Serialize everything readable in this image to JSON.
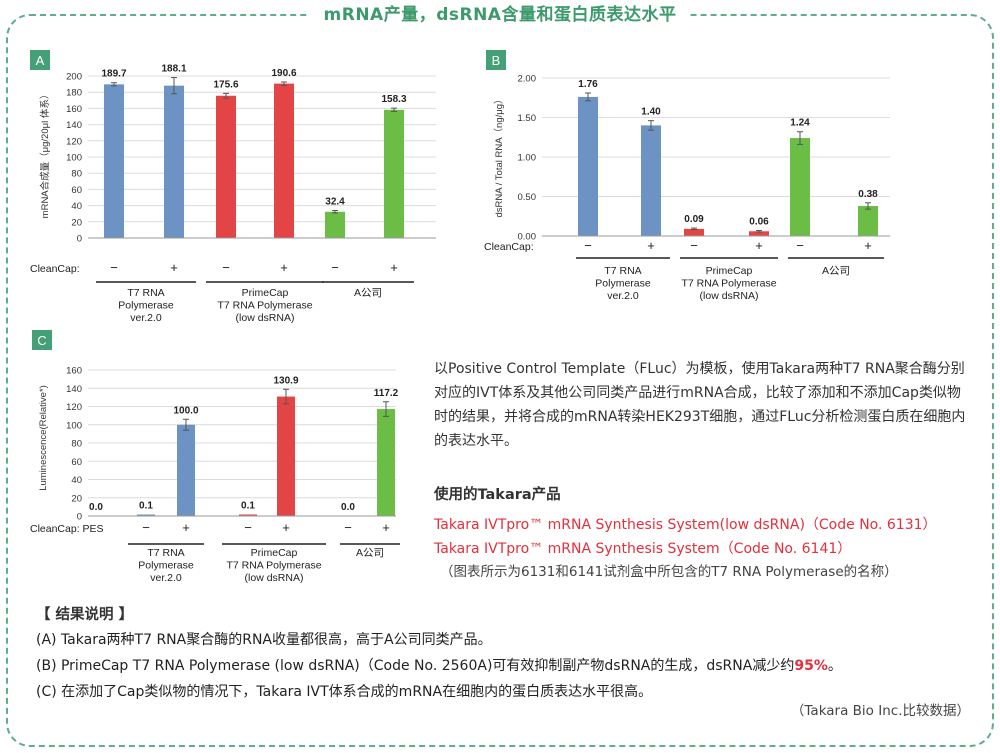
{
  "page_title": "mRNA产量，dsRNA含量和蛋白质表达水平",
  "chart_data": [
    {
      "id": "A",
      "type": "bar",
      "panel_label": "A",
      "ylabel": "mRNA合成量（μg/20μl 体系）",
      "ylim": [
        0,
        200
      ],
      "yticks": [
        0,
        20,
        40,
        60,
        80,
        100,
        120,
        140,
        160,
        180,
        200
      ],
      "grid": true,
      "row_label": "CleanCap:",
      "values": [
        189.7,
        188.1,
        175.6,
        190.6,
        32.4,
        158.3
      ],
      "value_labels": [
        "189.7",
        "188.1",
        "175.6",
        "190.6",
        "32.4",
        "158.3"
      ],
      "errors": [
        2,
        10,
        3,
        2,
        1.5,
        2
      ],
      "signs": [
        "−",
        "+",
        "−",
        "+",
        "−",
        "+"
      ],
      "colors": [
        "#6c93c4",
        "#6c93c4",
        "#e34547",
        "#e34547",
        "#6cbd45",
        "#6cbd45"
      ],
      "groups": [
        {
          "lines": [
            "T7 RNA",
            "Polymerase",
            "ver.2.0"
          ]
        },
        {
          "lines": [
            "PrimeCap",
            "T7 RNA Polymerase",
            "(low dsRNA)"
          ]
        },
        {
          "lines": [
            "A公司"
          ]
        }
      ]
    },
    {
      "id": "B",
      "type": "bar",
      "panel_label": "B",
      "ylabel": "dsRNA / Total RNA（ng/μg）",
      "ylim": [
        0,
        2.0
      ],
      "yticks": [
        0,
        0.5,
        1.0,
        1.5,
        2.0
      ],
      "ytick_labels": [
        "0.00",
        "0.50",
        "1.00",
        "1.50",
        "2.00"
      ],
      "grid": true,
      "row_label": "CleanCap:",
      "values": [
        1.76,
        1.4,
        0.09,
        0.06,
        1.24,
        0.38
      ],
      "value_labels": [
        "1.76",
        "1.40",
        "0.09",
        "0.06",
        "1.24",
        "0.38"
      ],
      "errors": [
        0.05,
        0.06,
        0.01,
        0.01,
        0.08,
        0.04
      ],
      "signs": [
        "−",
        "+",
        "−",
        "+",
        "−",
        "+"
      ],
      "colors": [
        "#6c93c4",
        "#6c93c4",
        "#e34547",
        "#e34547",
        "#6cbd45",
        "#6cbd45"
      ],
      "groups": [
        {
          "lines": [
            "T7 RNA",
            "Polymerase",
            "ver.2.0"
          ]
        },
        {
          "lines": [
            "PrimeCap",
            "T7 RNA Polymerase",
            "(low dsRNA)"
          ]
        },
        {
          "lines": [
            "A公司"
          ]
        }
      ]
    },
    {
      "id": "C",
      "type": "bar",
      "panel_label": "C",
      "ylabel": "Luminescence(Relative*)",
      "ylim": [
        0,
        160
      ],
      "yticks": [
        0,
        20,
        40,
        60,
        80,
        100,
        120,
        140,
        160
      ],
      "grid": true,
      "row_label": "CleanCap: PES",
      "values": [
        0.0,
        0.1,
        100.0,
        0.1,
        130.9,
        0.0,
        117.2
      ],
      "value_labels": [
        "0.0",
        "0.1",
        "100.0",
        "0.1",
        "130.9",
        "0.0",
        "117.2"
      ],
      "errors": [
        0,
        0,
        6,
        0,
        8,
        0,
        8
      ],
      "signs": [
        "",
        "−",
        "+",
        "−",
        "+",
        "−",
        "+"
      ],
      "colors": [
        "#6c93c4",
        "#6c93c4",
        "#6c93c4",
        "#e34547",
        "#e34547",
        "#6cbd45",
        "#6cbd45"
      ],
      "groups": [
        {
          "lines": [
            "T7 RNA",
            "Polymerase",
            "ver.2.0"
          ]
        },
        {
          "lines": [
            "PrimeCap",
            "T7 RNA Polymerase",
            "(low dsRNA)"
          ]
        },
        {
          "lines": [
            "A公司"
          ]
        }
      ]
    }
  ],
  "description": "以Positive Control Template（FLuc）为模板，使用Takara两种T7 RNA聚合酶分别对应的IVT体系及其他公司同类产品进行mRNA合成，比较了添加和不添加Cap类似物时的结果，并将合成的mRNA转染HEK293T细胞，通过FLuc分析检测蛋白质在细胞内的表达水平。",
  "products": {
    "title": "使用的Takara产品",
    "items": [
      "Takara IVTpro™ mRNA Synthesis System(low dsRNA)（Code No. 6131）",
      "Takara IVTpro™ mRNA Synthesis System（Code No. 6141）"
    ],
    "note": "（图表所示为6131和6141试剂盒中所包含的T7 RNA Polymerase的名称）"
  },
  "results": {
    "title": "【 结果说明 】",
    "lines": [
      "(A) Takara两种T7 RNA聚合酶的RNA收量都很高，高于A公司同类产品。",
      "(C) 在添加了Cap类似物的情况下，Takara IVT体系合成的mRNA在细胞内的蛋白质表达水平很高。"
    ],
    "line_b_prefix": "(B) PrimeCap T7 RNA Polymerase (low dsRNA)（Code No. 2560A)可有效抑制副产物dsRNA的生成，dsRNA减少约",
    "line_b_highlight": "95%",
    "line_b_suffix": "。"
  },
  "source": "（Takara Bio Inc.比较数据）"
}
